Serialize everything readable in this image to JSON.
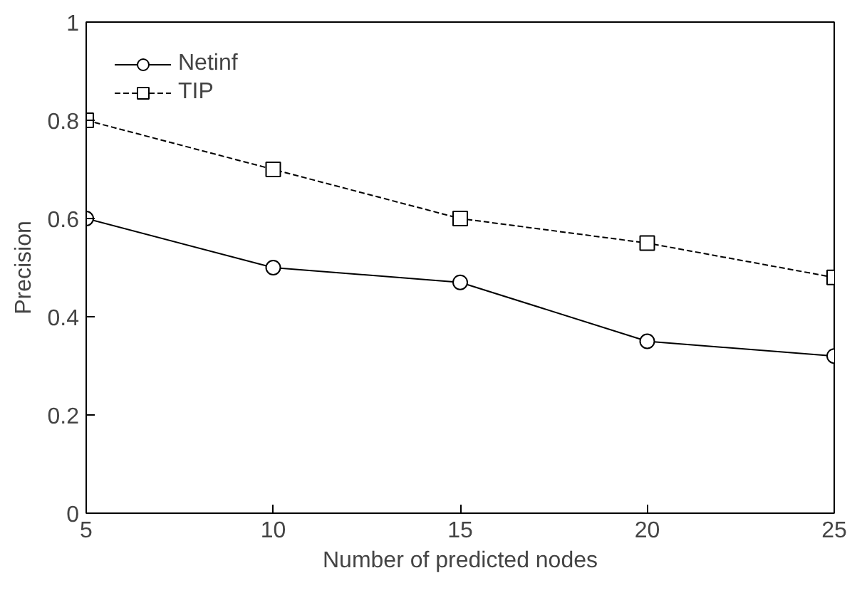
{
  "chart_data": {
    "type": "line",
    "xlabel": "Number of predicted nodes",
    "ylabel": "Precision",
    "x": [
      5,
      10,
      15,
      20,
      25
    ],
    "xlim": [
      5,
      25
    ],
    "xticks": [
      5,
      10,
      15,
      20,
      25
    ],
    "ylim": [
      0,
      1
    ],
    "yticks": [
      0,
      0.2,
      0.4,
      0.6,
      0.8,
      1
    ],
    "grid": false,
    "legend": "top left",
    "series": [
      {
        "name": "Netinf",
        "color": "#000000",
        "values": [
          0.6,
          0.5,
          0.47,
          0.35,
          0.32
        ],
        "marker": "circle",
        "line_style": "solid"
      },
      {
        "name": "TIP",
        "color": "#000000",
        "values": [
          0.8,
          0.7,
          0.6,
          0.55,
          0.48
        ],
        "marker": "square",
        "line_style": "dashed"
      }
    ]
  }
}
